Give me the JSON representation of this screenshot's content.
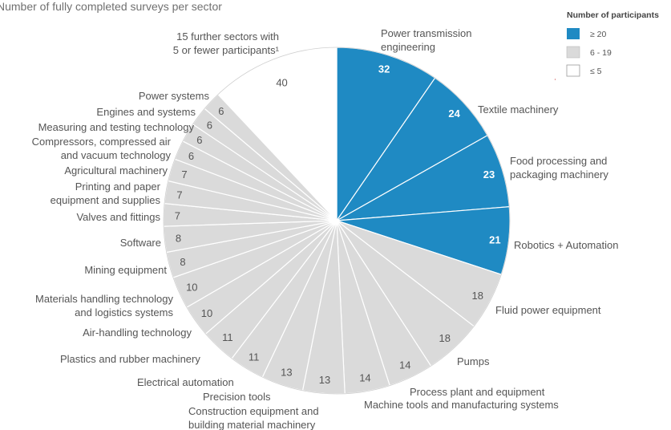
{
  "chart_data": {
    "type": "pie",
    "title": "Number of fully completed surveys per sector",
    "legend": {
      "title": "Number of participants",
      "placement": "top-right",
      "entries": [
        {
          "label": "≥ 20",
          "color": "#1f8ac3"
        },
        {
          "label": "6 - 19",
          "color": "#dadada"
        },
        {
          "label": "≤ 5",
          "color": "#ffffff"
        }
      ]
    },
    "slices": [
      {
        "label": "Power transmission\nengineering",
        "value": 32,
        "group": "high"
      },
      {
        "label": "Textile machinery",
        "value": 24,
        "group": "high"
      },
      {
        "label": "Food processing and\npackaging machinery",
        "value": 23,
        "group": "high"
      },
      {
        "label": "Robotics + Automation",
        "value": 21,
        "group": "high"
      },
      {
        "label": "Fluid power equipment",
        "value": 18,
        "group": "mid"
      },
      {
        "label": "Pumps",
        "value": 18,
        "group": "mid"
      },
      {
        "label": "Process plant and equipment",
        "value": 14,
        "group": "mid"
      },
      {
        "label": "Machine tools and manufacturing systems",
        "value": 14,
        "group": "mid"
      },
      {
        "label": "Construction equipment and\nbuilding material machinery",
        "value": 13,
        "group": "mid"
      },
      {
        "label": "Precision tools",
        "value": 13,
        "group": "mid"
      },
      {
        "label": "Electrical automation",
        "value": 11,
        "group": "mid"
      },
      {
        "label": "Plastics and rubber machinery",
        "value": 11,
        "group": "mid"
      },
      {
        "label": "Air-handling technology",
        "value": 10,
        "group": "mid"
      },
      {
        "label": "Materials handling technology\nand logistics systems",
        "value": 10,
        "group": "mid"
      },
      {
        "label": "Mining equipment",
        "value": 8,
        "group": "mid"
      },
      {
        "label": "Software",
        "value": 8,
        "group": "mid"
      },
      {
        "label": "Valves and fittings",
        "value": 7,
        "group": "mid"
      },
      {
        "label": "Printing and paper\nequipment and supplies",
        "value": 7,
        "group": "mid"
      },
      {
        "label": "Agricultural machinery",
        "value": 7,
        "group": "mid"
      },
      {
        "label": "Compressors, compressed air\nand vacuum technology",
        "value": 6,
        "group": "mid"
      },
      {
        "label": "Measuring and testing technology",
        "value": 6,
        "group": "mid"
      },
      {
        "label": "Engines and systems",
        "value": 6,
        "group": "mid"
      },
      {
        "label": "Power systems",
        "value": 6,
        "group": "mid"
      },
      {
        "label": "15 further sectors with\n5 or fewer participants¹",
        "value": 40,
        "group": "low"
      }
    ],
    "colors": {
      "high": "#1f8ac3",
      "mid": "#dadada",
      "low": "#ffffff",
      "separator": "#ffffff",
      "outline": "#cfcfcf"
    }
  }
}
